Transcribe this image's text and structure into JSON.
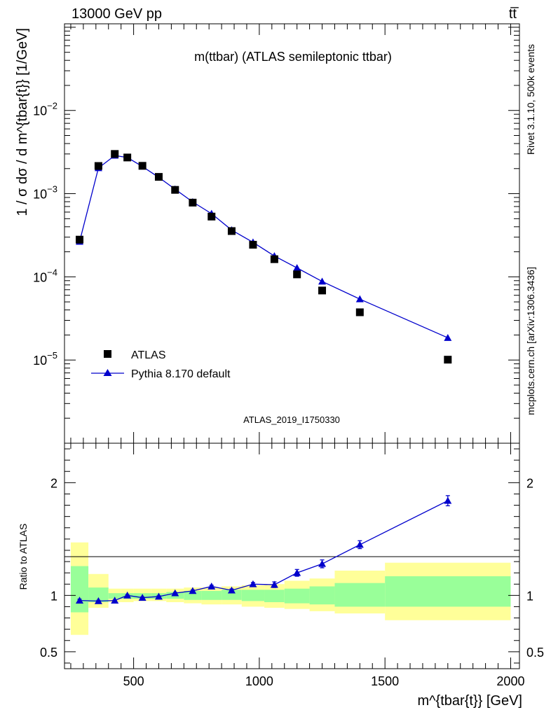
{
  "header": {
    "energy_label": "13000 GeV pp",
    "process_label": "tt̅"
  },
  "side": {
    "rivet_label": "Rivet 3.1.10,  500k events",
    "source_label": "mcplots.cern.ch [arXiv:1306.3436]"
  },
  "chart_data": {
    "type": "scatter",
    "title": "m(ttbar) (ATLAS semileptonic ttbar)",
    "analysis_id": "ATLAS_2019_I1750330",
    "ylabel": "1 / σ dσ / d m^{tbar{t}} [1/GeV]",
    "xlabel": "m^{tbar{t}} [GeV]",
    "ratio_ylabel": "Ratio to ATLAS",
    "xlim": [
      225,
      2035
    ],
    "ylim_log": [
      1e-06,
      0.11
    ],
    "ratio_ylim": [
      0.35,
      2.35
    ],
    "x_ticks": [
      500,
      1000,
      1500,
      2000
    ],
    "x_tick_labels": [
      "500",
      "1000",
      "1500",
      "2000"
    ],
    "y_ticks": [
      1e-05,
      0.0001,
      0.001,
      0.01
    ],
    "y_tick_labels": [
      {
        "base": "10",
        "exp": "−5"
      },
      {
        "base": "10",
        "exp": "−4"
      },
      {
        "base": "10",
        "exp": "−3"
      },
      {
        "base": "10",
        "exp": "−2"
      }
    ],
    "ratio_ticks": [
      0.5,
      1,
      2
    ],
    "ratio_tick_labels": [
      "0.5",
      "1",
      "2"
    ],
    "legend": [
      "ATLAS",
      "Pythia 8.170 default"
    ],
    "legend_position": "bottom-left",
    "bins": [
      {
        "lo": 250,
        "hi": 320,
        "x": 285,
        "data": 0.00028,
        "mc": 0.000265,
        "ratio": 0.955,
        "ratio_err": 0.012,
        "band_green": [
          0.85,
          1.26
        ],
        "band_yellow": [
          0.65,
          1.47
        ]
      },
      {
        "lo": 320,
        "hi": 400,
        "x": 360,
        "data": 0.00215,
        "mc": 0.00203,
        "ratio": 0.95,
        "ratio_err": 0.006,
        "band_green": [
          0.94,
          1.07
        ],
        "band_yellow": [
          0.89,
          1.19
        ]
      },
      {
        "lo": 400,
        "hi": 450,
        "x": 425,
        "data": 0.003,
        "mc": 0.00287,
        "ratio": 0.955,
        "ratio_err": 0.006,
        "band_green": [
          0.97,
          1.02
        ],
        "band_yellow": [
          0.94,
          1.06
        ]
      },
      {
        "lo": 450,
        "hi": 500,
        "x": 475,
        "data": 0.00272,
        "mc": 0.00272,
        "ratio": 1.0,
        "ratio_err": 0.006,
        "band_green": [
          0.97,
          1.02
        ],
        "band_yellow": [
          0.94,
          1.06
        ]
      },
      {
        "lo": 500,
        "hi": 570,
        "x": 535,
        "data": 0.00216,
        "mc": 0.00212,
        "ratio": 0.98,
        "ratio_err": 0.006,
        "band_green": [
          0.97,
          1.02
        ],
        "band_yellow": [
          0.95,
          1.06
        ]
      },
      {
        "lo": 570,
        "hi": 630,
        "x": 600,
        "data": 0.00159,
        "mc": 0.00157,
        "ratio": 0.99,
        "ratio_err": 0.006,
        "band_green": [
          0.97,
          1.02
        ],
        "band_yellow": [
          0.95,
          1.06
        ]
      },
      {
        "lo": 630,
        "hi": 700,
        "x": 665,
        "data": 0.00111,
        "mc": 0.00113,
        "ratio": 1.02,
        "ratio_err": 0.007,
        "band_green": [
          0.97,
          1.03
        ],
        "band_yellow": [
          0.94,
          1.06
        ]
      },
      {
        "lo": 700,
        "hi": 770,
        "x": 735,
        "data": 0.00078,
        "mc": 0.000795,
        "ratio": 1.04,
        "ratio_err": 0.008,
        "band_green": [
          0.96,
          1.04
        ],
        "band_yellow": [
          0.93,
          1.07
        ]
      },
      {
        "lo": 770,
        "hi": 850,
        "x": 810,
        "data": 0.00053,
        "mc": 0.000575,
        "ratio": 1.08,
        "ratio_err": 0.01,
        "band_green": [
          0.96,
          1.04
        ],
        "band_yellow": [
          0.92,
          1.07
        ]
      },
      {
        "lo": 850,
        "hi": 930,
        "x": 890,
        "data": 0.000355,
        "mc": 0.000365,
        "ratio": 1.045,
        "ratio_err": 0.012,
        "band_green": [
          0.96,
          1.05
        ],
        "band_yellow": [
          0.92,
          1.08
        ]
      },
      {
        "lo": 930,
        "hi": 1020,
        "x": 975,
        "data": 0.000243,
        "mc": 0.00026,
        "ratio": 1.1,
        "ratio_err": 0.014,
        "band_green": [
          0.95,
          1.05
        ],
        "band_yellow": [
          0.9,
          1.09
        ]
      },
      {
        "lo": 1020,
        "hi": 1100,
        "x": 1060,
        "data": 0.000163,
        "mc": 0.000178,
        "ratio": 1.095,
        "ratio_err": 0.025,
        "band_green": [
          0.94,
          1.05
        ],
        "band_yellow": [
          0.89,
          1.1
        ]
      },
      {
        "lo": 1100,
        "hi": 1200,
        "x": 1150,
        "data": 0.000107,
        "mc": 0.000128,
        "ratio": 1.2,
        "ratio_err": 0.03,
        "band_green": [
          0.93,
          1.06
        ],
        "band_yellow": [
          0.88,
          1.13
        ]
      },
      {
        "lo": 1200,
        "hi": 1300,
        "x": 1250,
        "data": 6.85e-05,
        "mc": 8.8e-05,
        "ratio": 1.28,
        "ratio_err": 0.035,
        "band_green": [
          0.92,
          1.08
        ],
        "band_yellow": [
          0.86,
          1.15
        ]
      },
      {
        "lo": 1300,
        "hi": 1500,
        "x": 1400,
        "data": 3.75e-05,
        "mc": 5.4e-05,
        "ratio": 1.45,
        "ratio_err": 0.035,
        "band_green": [
          0.9,
          1.11
        ],
        "band_yellow": [
          0.84,
          1.22
        ]
      },
      {
        "lo": 1500,
        "hi": 2000,
        "x": 1750,
        "data": 1.01e-05,
        "mc": 1.85e-05,
        "ratio": 1.84,
        "ratio_err": 0.045,
        "band_green": [
          0.9,
          1.17
        ],
        "band_yellow": [
          0.78,
          1.29
        ]
      }
    ],
    "colors": {
      "data": "#000000",
      "mc": "#0000cc",
      "band_inner": "#99ff99",
      "band_outer": "#ffff99",
      "analysis_label": "#a0a0a0",
      "side_label": "#808080"
    }
  }
}
